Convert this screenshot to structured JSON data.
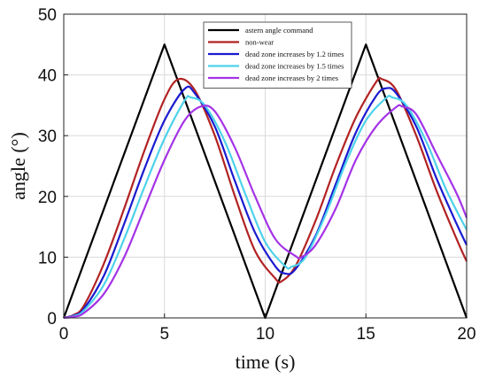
{
  "chart_data": {
    "type": "line",
    "xlabel": "time (s)",
    "ylabel": "angle (°)",
    "xlim": [
      0,
      20
    ],
    "ylim": [
      0,
      50
    ],
    "xticks": [
      0,
      5,
      10,
      15,
      20
    ],
    "yticks": [
      0,
      10,
      20,
      30,
      40,
      50
    ],
    "grid": true,
    "legend_position": "top-right",
    "series": [
      {
        "name": "astern angle command",
        "color": "#000000",
        "x": [
          0,
          5,
          10,
          15,
          20
        ],
        "y": [
          0,
          45,
          0,
          45,
          0
        ]
      },
      {
        "name": "non-wear",
        "color": "#b22222",
        "x": [
          0,
          0.5,
          1,
          2,
          3,
          4,
          5,
          5.7,
          6.5,
          7.5,
          8.5,
          9.5,
          10.5,
          10.8,
          11.5,
          12.5,
          13.5,
          14.5,
          15.5,
          15.8,
          16.5,
          17.5,
          18.5,
          19.5,
          20
        ],
        "y": [
          0,
          0.5,
          2,
          9,
          18,
          27.5,
          36,
          39.3,
          37.5,
          30,
          20,
          11,
          6.5,
          6,
          8.5,
          16,
          25,
          33,
          38.8,
          39.3,
          37.5,
          30,
          21,
          13,
          9.3
        ]
      },
      {
        "name": "dead zone increases by 1.2 times",
        "color": "#1a1ad0",
        "x": [
          0,
          0.5,
          1,
          2,
          3,
          4,
          5,
          6,
          6.5,
          7.5,
          8.5,
          9.5,
          10.5,
          11,
          11.5,
          12.5,
          13.5,
          14.5,
          15.5,
          16,
          16.5,
          17.5,
          18.5,
          19.5,
          20
        ],
        "y": [
          0,
          0.4,
          1.5,
          7,
          15.5,
          24.5,
          32.5,
          37.7,
          37,
          31.5,
          22.5,
          14,
          8.5,
          7.3,
          8,
          13.5,
          22,
          30.5,
          36.5,
          37.8,
          37,
          31.5,
          23,
          15.5,
          12
        ]
      },
      {
        "name": "dead zone increases by 1.5 times",
        "color": "#4dd2ea",
        "x": [
          0,
          0.5,
          1,
          2,
          3,
          4,
          5,
          6,
          6.3,
          7,
          8,
          9,
          10,
          11,
          11.3,
          12,
          13,
          14,
          15,
          16,
          16.3,
          17,
          18,
          19,
          20
        ],
        "y": [
          0,
          0.3,
          1.2,
          5.5,
          13,
          21.5,
          29.5,
          35.8,
          36.3,
          35,
          29,
          20.5,
          12.5,
          8.5,
          8.4,
          10,
          17,
          25.5,
          32.5,
          36.2,
          36.3,
          35,
          29,
          21,
          14.5
        ]
      },
      {
        "name": "dead zone increases by 2 times",
        "color": "#a433e6",
        "x": [
          0,
          0.5,
          1,
          2,
          3,
          4,
          5,
          6,
          6.8,
          7.5,
          8.5,
          9.5,
          10.5,
          11.5,
          11.8,
          12.5,
          13.5,
          14.5,
          15.5,
          16.5,
          16.8,
          17.5,
          18.5,
          19.5,
          20
        ],
        "y": [
          0,
          0.2,
          0.8,
          4,
          10,
          18,
          26,
          32.5,
          34.8,
          34,
          28,
          20,
          13,
          10.2,
          10,
          12,
          18,
          26,
          31.5,
          34.7,
          34.8,
          33.5,
          27,
          20.5,
          16.5
        ]
      }
    ]
  }
}
